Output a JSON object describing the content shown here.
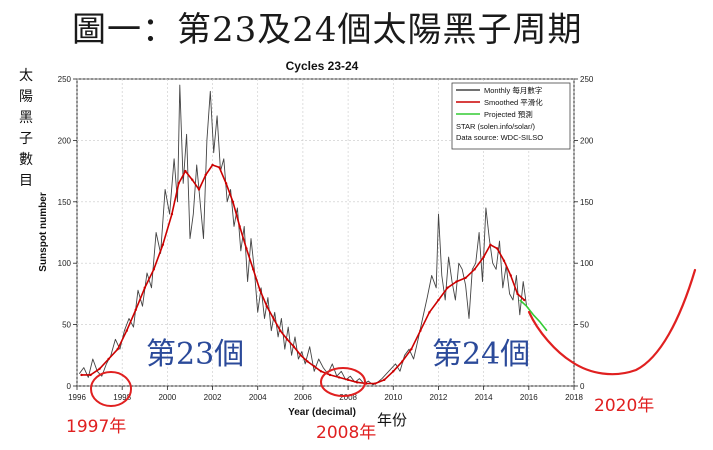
{
  "headline": "圖一：第23及24個太陽黑子周期",
  "side_label": "太陽黑子數目",
  "colors": {
    "monthly": "#444444",
    "smoothed": "#cc0000",
    "projected": "#33cc33",
    "annotation_blue": "#2b4a9a",
    "annotation_red": "#e02020"
  },
  "chart_data": {
    "type": "line",
    "title": "Cycles 23-24",
    "xlabel": "Year (decimal)",
    "xlabel_extra": "年份",
    "ylabel": "Sunspot number",
    "xlim": [
      1996,
      2018
    ],
    "ylim": [
      0,
      250
    ],
    "x_ticks": [
      1996,
      1998,
      2000,
      2002,
      2004,
      2006,
      2008,
      2010,
      2012,
      2014,
      2016,
      2018
    ],
    "y_ticks": [
      0,
      50,
      100,
      150,
      200,
      250
    ],
    "grid": true,
    "legend_position": "top-right",
    "legend": [
      {
        "label": "Monthly",
        "label_zh": "每月數字",
        "series": "monthly"
      },
      {
        "label": "Smoothed",
        "label_zh": "平滑化",
        "series": "smoothed"
      },
      {
        "label": "Projected",
        "label_zh": "預測",
        "series": "projected"
      }
    ],
    "legend_notes": [
      "STAR (solen.info/solar/)",
      "Data source: WDC-SILSO"
    ],
    "series": [
      {
        "key": "monthly",
        "name": "Monthly",
        "points": [
          [
            1996.1,
            10
          ],
          [
            1996.3,
            15
          ],
          [
            1996.5,
            7
          ],
          [
            1996.7,
            22
          ],
          [
            1996.9,
            12
          ],
          [
            1997.1,
            8
          ],
          [
            1997.3,
            18
          ],
          [
            1997.5,
            25
          ],
          [
            1997.7,
            38
          ],
          [
            1997.9,
            30
          ],
          [
            1998.1,
            45
          ],
          [
            1998.3,
            55
          ],
          [
            1998.5,
            48
          ],
          [
            1998.7,
            78
          ],
          [
            1998.9,
            65
          ],
          [
            1999.1,
            92
          ],
          [
            1999.3,
            80
          ],
          [
            1999.5,
            125
          ],
          [
            1999.7,
            108
          ],
          [
            1999.9,
            160
          ],
          [
            2000.1,
            140
          ],
          [
            2000.3,
            185
          ],
          [
            2000.45,
            150
          ],
          [
            2000.55,
            245
          ],
          [
            2000.7,
            165
          ],
          [
            2000.85,
            205
          ],
          [
            2001.0,
            120
          ],
          [
            2001.15,
            140
          ],
          [
            2001.3,
            180
          ],
          [
            2001.45,
            150
          ],
          [
            2001.6,
            120
          ],
          [
            2001.75,
            200
          ],
          [
            2001.9,
            240
          ],
          [
            2002.05,
            190
          ],
          [
            2002.2,
            220
          ],
          [
            2002.35,
            175
          ],
          [
            2002.5,
            185
          ],
          [
            2002.65,
            150
          ],
          [
            2002.8,
            160
          ],
          [
            2002.95,
            130
          ],
          [
            2003.1,
            145
          ],
          [
            2003.25,
            110
          ],
          [
            2003.4,
            130
          ],
          [
            2003.55,
            85
          ],
          [
            2003.7,
            120
          ],
          [
            2003.85,
            95
          ],
          [
            2004.0,
            60
          ],
          [
            2004.15,
            80
          ],
          [
            2004.3,
            55
          ],
          [
            2004.45,
            72
          ],
          [
            2004.6,
            45
          ],
          [
            2004.75,
            60
          ],
          [
            2004.9,
            40
          ],
          [
            2005.05,
            55
          ],
          [
            2005.2,
            30
          ],
          [
            2005.35,
            48
          ],
          [
            2005.5,
            25
          ],
          [
            2005.65,
            40
          ],
          [
            2005.8,
            22
          ],
          [
            2005.95,
            28
          ],
          [
            2006.1,
            18
          ],
          [
            2006.3,
            32
          ],
          [
            2006.5,
            12
          ],
          [
            2006.7,
            22
          ],
          [
            2006.9,
            15
          ],
          [
            2007.1,
            10
          ],
          [
            2007.3,
            18
          ],
          [
            2007.5,
            8
          ],
          [
            2007.7,
            12
          ],
          [
            2007.9,
            5
          ],
          [
            2008.1,
            8
          ],
          [
            2008.3,
            3
          ],
          [
            2008.5,
            6
          ],
          [
            2008.7,
            2
          ],
          [
            2008.9,
            4
          ],
          [
            2009.1,
            1
          ],
          [
            2009.3,
            3
          ],
          [
            2009.5,
            6
          ],
          [
            2009.7,
            10
          ],
          [
            2009.9,
            14
          ],
          [
            2010.1,
            18
          ],
          [
            2010.3,
            12
          ],
          [
            2010.5,
            25
          ],
          [
            2010.7,
            30
          ],
          [
            2010.9,
            22
          ],
          [
            2011.1,
            38
          ],
          [
            2011.3,
            55
          ],
          [
            2011.5,
            72
          ],
          [
            2011.7,
            90
          ],
          [
            2011.9,
            80
          ],
          [
            2012.0,
            140
          ],
          [
            2012.15,
            90
          ],
          [
            2012.3,
            70
          ],
          [
            2012.45,
            105
          ],
          [
            2012.6,
            85
          ],
          [
            2012.75,
            70
          ],
          [
            2012.9,
            100
          ],
          [
            2013.05,
            95
          ],
          [
            2013.2,
            82
          ],
          [
            2013.35,
            55
          ],
          [
            2013.5,
            95
          ],
          [
            2013.65,
            100
          ],
          [
            2013.8,
            125
          ],
          [
            2013.95,
            85
          ],
          [
            2014.1,
            145
          ],
          [
            2014.25,
            120
          ],
          [
            2014.4,
            100
          ],
          [
            2014.55,
            95
          ],
          [
            2014.7,
            118
          ],
          [
            2014.85,
            80
          ],
          [
            2015.0,
            98
          ],
          [
            2015.15,
            75
          ],
          [
            2015.3,
            70
          ],
          [
            2015.45,
            90
          ],
          [
            2015.6,
            58
          ],
          [
            2015.75,
            85
          ],
          [
            2015.9,
            65
          ]
        ]
      },
      {
        "key": "smoothed",
        "name": "Smoothed",
        "points": [
          [
            1996.2,
            9
          ],
          [
            1996.6,
            9
          ],
          [
            1997.0,
            14
          ],
          [
            1997.4,
            22
          ],
          [
            1997.8,
            30
          ],
          [
            1998.2,
            45
          ],
          [
            1998.6,
            62
          ],
          [
            1999.0,
            80
          ],
          [
            1999.4,
            95
          ],
          [
            1999.8,
            115
          ],
          [
            2000.2,
            140
          ],
          [
            2000.5,
            165
          ],
          [
            2000.8,
            175
          ],
          [
            2001.1,
            168
          ],
          [
            2001.4,
            160
          ],
          [
            2001.7,
            172
          ],
          [
            2002.0,
            180
          ],
          [
            2002.3,
            178
          ],
          [
            2002.6,
            165
          ],
          [
            2002.9,
            150
          ],
          [
            2003.2,
            130
          ],
          [
            2003.5,
            112
          ],
          [
            2003.8,
            95
          ],
          [
            2004.1,
            78
          ],
          [
            2004.4,
            65
          ],
          [
            2004.7,
            55
          ],
          [
            2005.0,
            45
          ],
          [
            2005.3,
            38
          ],
          [
            2005.6,
            32
          ],
          [
            2005.9,
            25
          ],
          [
            2006.2,
            20
          ],
          [
            2006.5,
            16
          ],
          [
            2006.8,
            12
          ],
          [
            2007.2,
            9
          ],
          [
            2007.6,
            7
          ],
          [
            2008.0,
            5
          ],
          [
            2008.4,
            3
          ],
          [
            2008.8,
            2
          ],
          [
            2009.2,
            2
          ],
          [
            2009.6,
            5
          ],
          [
            2010.0,
            12
          ],
          [
            2010.4,
            20
          ],
          [
            2010.8,
            30
          ],
          [
            2011.2,
            45
          ],
          [
            2011.6,
            60
          ],
          [
            2012.0,
            70
          ],
          [
            2012.4,
            80
          ],
          [
            2012.8,
            85
          ],
          [
            2013.2,
            88
          ],
          [
            2013.6,
            95
          ],
          [
            2014.0,
            105
          ],
          [
            2014.3,
            115
          ],
          [
            2014.6,
            112
          ],
          [
            2014.9,
            102
          ],
          [
            2015.2,
            90
          ],
          [
            2015.5,
            75
          ],
          [
            2015.8,
            70
          ]
        ]
      },
      {
        "key": "projected",
        "name": "Projected",
        "points": [
          [
            2015.6,
            70
          ],
          [
            2015.9,
            65
          ],
          [
            2016.2,
            58
          ],
          [
            2016.5,
            52
          ],
          [
            2016.8,
            45
          ]
        ]
      }
    ]
  },
  "annotations": {
    "cycle_23": "第23個",
    "cycle_24": "第24個",
    "year_1997": "1997年",
    "year_2008": "2008年",
    "year_2020": "2020年"
  }
}
